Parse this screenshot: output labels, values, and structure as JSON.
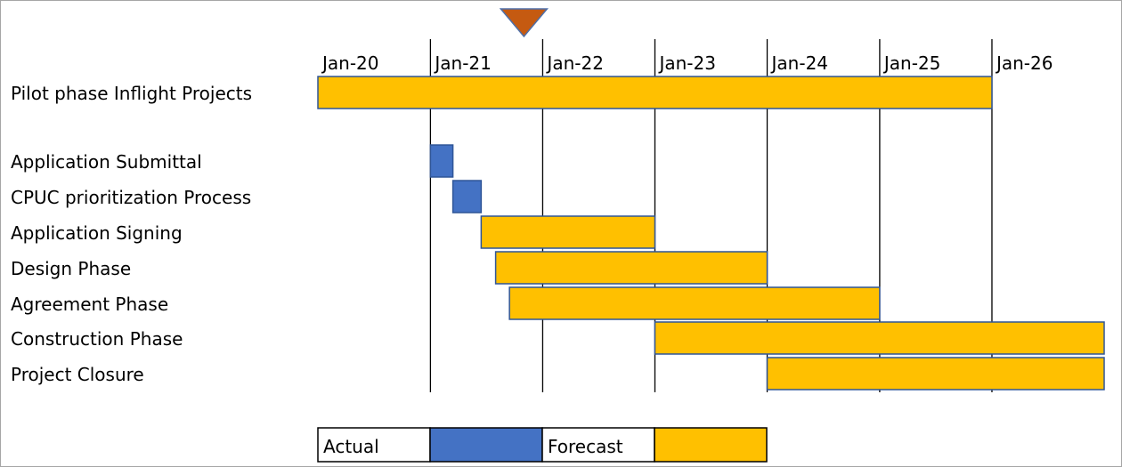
{
  "chart_data": {
    "type": "gantt",
    "title": "",
    "x_axis_type": "date",
    "x_ticks": [
      "Jan-20",
      "Jan-21",
      "Jan-22",
      "Jan-23",
      "Jan-24",
      "Jan-25",
      "Jan-26"
    ],
    "xlim": [
      "2020-01-01",
      "2027-01-01"
    ],
    "today_marker": "2021-11-01",
    "tasks": [
      {
        "label": "Pilot phase Inflight Projects",
        "start": "2020-01-01",
        "end": "2026-01-01",
        "status": "forecast"
      },
      {
        "label": "Application Submittal",
        "start": "2021-01-01",
        "end": "2021-03-15",
        "status": "actual"
      },
      {
        "label": "CPUC prioritization Process",
        "start": "2021-03-15",
        "end": "2021-06-15",
        "status": "actual"
      },
      {
        "label": "Application Signing",
        "start": "2021-06-15",
        "end": "2023-01-01",
        "status": "forecast"
      },
      {
        "label": "Design Phase",
        "start": "2021-08-01",
        "end": "2024-01-01",
        "status": "forecast"
      },
      {
        "label": "Agreement Phase",
        "start": "2021-09-15",
        "end": "2025-01-01",
        "status": "forecast"
      },
      {
        "label": "Construction Phase",
        "start": "2023-01-01",
        "end": "2027-01-01",
        "status": "forecast"
      },
      {
        "label": "Project Closure",
        "start": "2024-01-01",
        "end": "2027-01-01",
        "status": "forecast"
      }
    ],
    "legend": {
      "placement": "bottom",
      "items": [
        {
          "key": "actual",
          "label": "Actual",
          "color": "#4472c4"
        },
        {
          "key": "forecast",
          "label": "Forecast",
          "color": "#ffc000"
        }
      ]
    },
    "colors": {
      "actual": "#4472c4",
      "forecast": "#ffc000",
      "bar_border": "#2f5597",
      "marker": "#c55a11"
    }
  }
}
